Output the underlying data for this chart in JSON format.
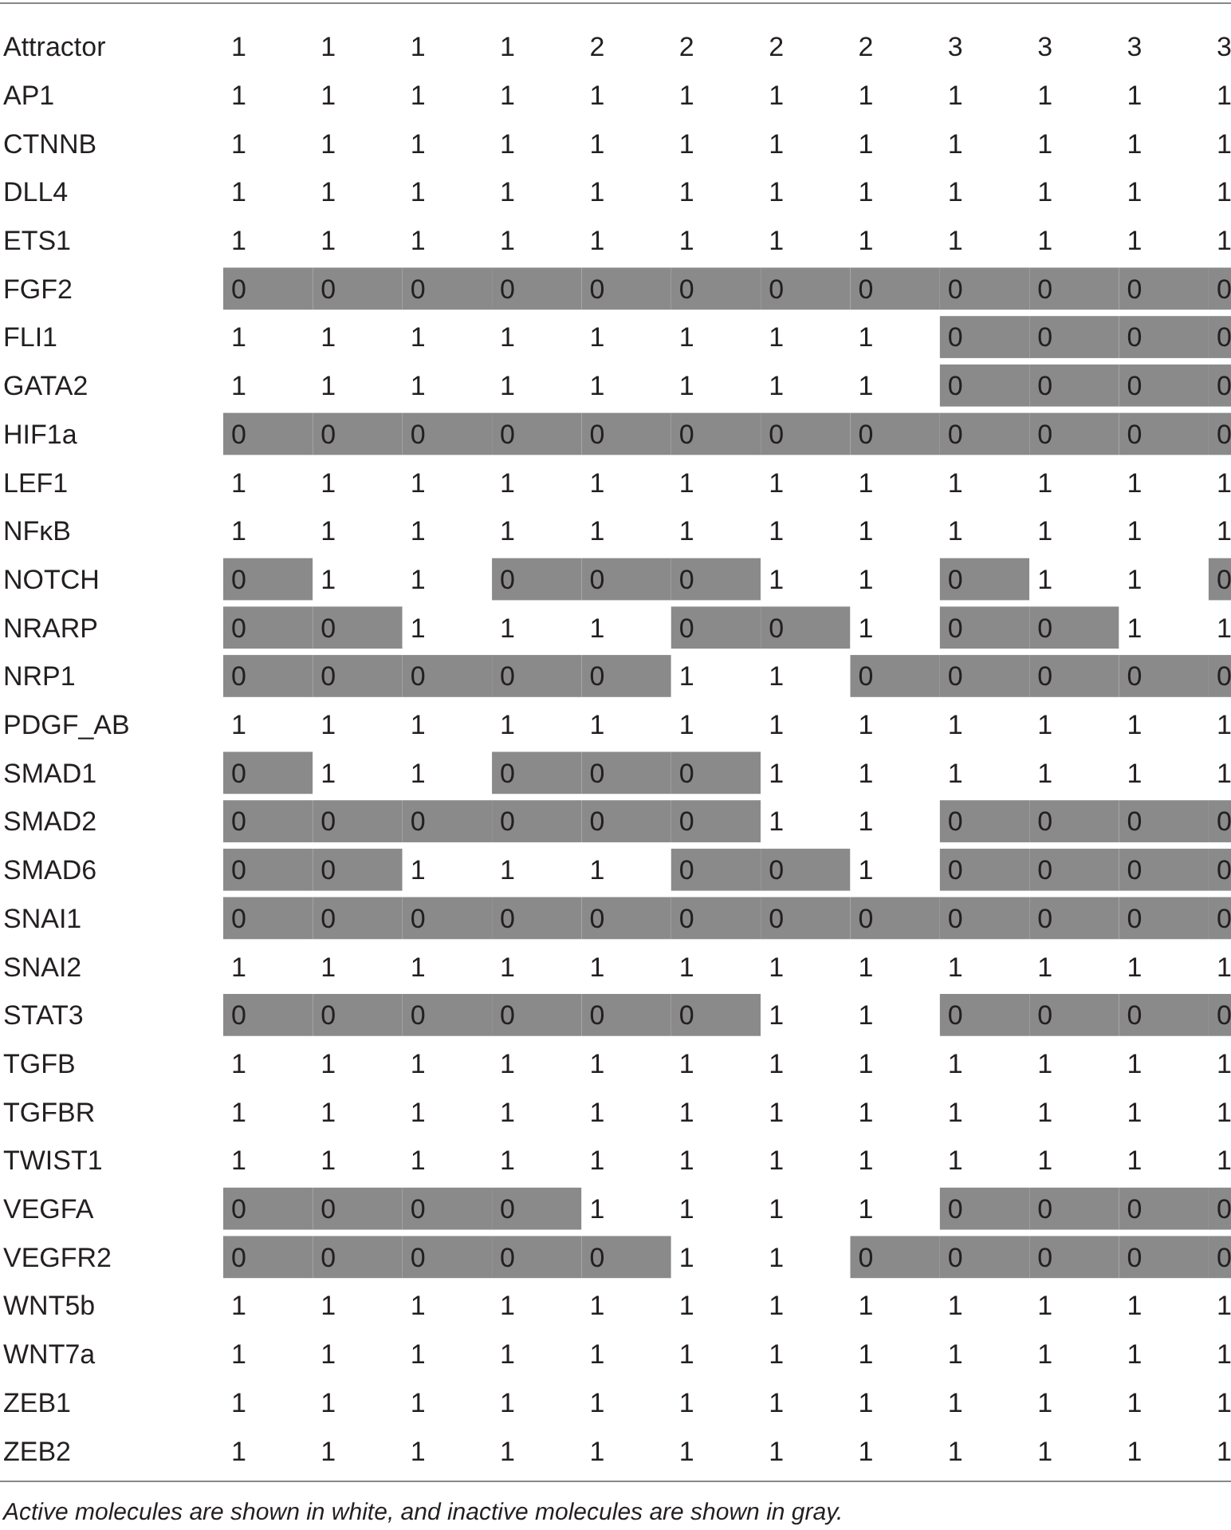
{
  "chart_data": {
    "type": "heatmap",
    "xlabel": "Attractor",
    "categories": [
      "1",
      "1",
      "1",
      "1",
      "2",
      "2",
      "2",
      "2",
      "3",
      "3",
      "3",
      "3"
    ],
    "y_categories": [
      "AP1",
      "CTNNB",
      "DLL4",
      "ETS1",
      "FGF2",
      "FLI1",
      "GATA2",
      "HIF1a",
      "LEF1",
      "NFκB",
      "NOTCH",
      "NRARP",
      "NRP1",
      "PDGF_AB",
      "SMAD1",
      "SMAD2",
      "SMAD6",
      "SNAI1",
      "SNAI2",
      "STAT3",
      "TGFB",
      "TGFBR",
      "TWIST1",
      "VEGFA",
      "VEGFR2",
      "WNT5b",
      "WNT7a",
      "ZEB1",
      "ZEB2"
    ],
    "cells": [
      [
        1,
        1,
        1,
        1,
        1,
        1,
        1,
        1,
        1,
        1,
        1,
        1
      ],
      [
        1,
        1,
        1,
        1,
        1,
        1,
        1,
        1,
        1,
        1,
        1,
        1
      ],
      [
        1,
        1,
        1,
        1,
        1,
        1,
        1,
        1,
        1,
        1,
        1,
        1
      ],
      [
        1,
        1,
        1,
        1,
        1,
        1,
        1,
        1,
        1,
        1,
        1,
        1
      ],
      [
        0,
        0,
        0,
        0,
        0,
        0,
        0,
        0,
        0,
        0,
        0,
        0
      ],
      [
        1,
        1,
        1,
        1,
        1,
        1,
        1,
        1,
        0,
        0,
        0,
        0
      ],
      [
        1,
        1,
        1,
        1,
        1,
        1,
        1,
        1,
        0,
        0,
        0,
        0
      ],
      [
        0,
        0,
        0,
        0,
        0,
        0,
        0,
        0,
        0,
        0,
        0,
        0
      ],
      [
        1,
        1,
        1,
        1,
        1,
        1,
        1,
        1,
        1,
        1,
        1,
        1
      ],
      [
        1,
        1,
        1,
        1,
        1,
        1,
        1,
        1,
        1,
        1,
        1,
        1
      ],
      [
        0,
        1,
        1,
        0,
        0,
        0,
        1,
        1,
        0,
        1,
        1,
        0
      ],
      [
        0,
        0,
        1,
        1,
        1,
        0,
        0,
        1,
        0,
        0,
        1,
        1
      ],
      [
        0,
        0,
        0,
        0,
        0,
        1,
        1,
        0,
        0,
        0,
        0,
        0
      ],
      [
        1,
        1,
        1,
        1,
        1,
        1,
        1,
        1,
        1,
        1,
        1,
        1
      ],
      [
        0,
        1,
        1,
        0,
        0,
        0,
        1,
        1,
        1,
        1,
        1,
        1
      ],
      [
        0,
        0,
        0,
        0,
        0,
        0,
        1,
        1,
        0,
        0,
        0,
        0
      ],
      [
        0,
        0,
        1,
        1,
        1,
        0,
        0,
        1,
        0,
        0,
        0,
        0
      ],
      [
        0,
        0,
        0,
        0,
        0,
        0,
        0,
        0,
        0,
        0,
        0,
        0
      ],
      [
        1,
        1,
        1,
        1,
        1,
        1,
        1,
        1,
        1,
        1,
        1,
        1
      ],
      [
        0,
        0,
        0,
        0,
        0,
        0,
        1,
        1,
        0,
        0,
        0,
        0
      ],
      [
        1,
        1,
        1,
        1,
        1,
        1,
        1,
        1,
        1,
        1,
        1,
        1
      ],
      [
        1,
        1,
        1,
        1,
        1,
        1,
        1,
        1,
        1,
        1,
        1,
        1
      ],
      [
        1,
        1,
        1,
        1,
        1,
        1,
        1,
        1,
        1,
        1,
        1,
        1
      ],
      [
        0,
        0,
        0,
        0,
        1,
        1,
        1,
        1,
        0,
        0,
        0,
        0
      ],
      [
        0,
        0,
        0,
        0,
        0,
        1,
        1,
        0,
        0,
        0,
        0,
        0
      ],
      [
        1,
        1,
        1,
        1,
        1,
        1,
        1,
        1,
        1,
        1,
        1,
        1
      ],
      [
        1,
        1,
        1,
        1,
        1,
        1,
        1,
        1,
        1,
        1,
        1,
        1
      ],
      [
        1,
        1,
        1,
        1,
        1,
        1,
        1,
        1,
        1,
        1,
        1,
        1
      ],
      [
        1,
        1,
        1,
        1,
        1,
        1,
        1,
        1,
        1,
        1,
        1,
        1
      ]
    ],
    "colors": [
      "#8a8a8a",
      "#ffffff"
    ],
    "data_labels": true,
    "annotations": [
      "Active molecules are shown in white, and inactive molecules are shown in gray."
    ]
  }
}
